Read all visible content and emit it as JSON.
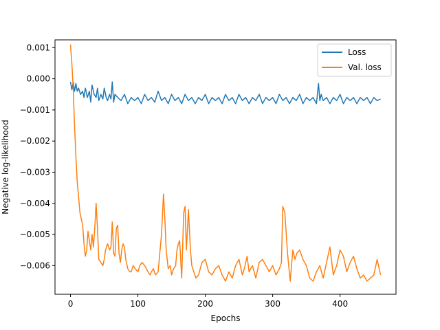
{
  "chart_data": {
    "type": "line",
    "title": "",
    "xlabel": "Epochs",
    "ylabel": "Negative log-likelihood",
    "xlim": [
      -23,
      483
    ],
    "ylim": [
      -0.00692,
      0.00125
    ],
    "x_ticks": [
      0,
      100,
      200,
      300,
      400
    ],
    "y_ticks": [
      0.001,
      0.0,
      -0.001,
      -0.002,
      -0.003,
      -0.004,
      -0.005,
      -0.006
    ],
    "y_tick_labels": [
      "0.001",
      "0.000",
      "−0.001",
      "−0.002",
      "−0.003",
      "−0.004",
      "−0.005",
      "−0.006"
    ],
    "x_tick_labels": [
      "0",
      "100",
      "200",
      "300",
      "400"
    ],
    "grid": false,
    "legend_position": "top-right",
    "series": [
      {
        "name": "Loss",
        "color": "#1f77b4",
        "x": [
          0,
          2,
          4,
          6,
          8,
          10,
          12,
          15,
          18,
          20,
          22,
          25,
          28,
          30,
          32,
          35,
          38,
          40,
          42,
          45,
          48,
          50,
          53,
          55,
          58,
          60,
          62,
          64,
          66,
          70,
          75,
          80,
          85,
          90,
          95,
          100,
          105,
          110,
          115,
          120,
          125,
          130,
          135,
          140,
          145,
          150,
          155,
          160,
          165,
          170,
          175,
          180,
          185,
          190,
          195,
          200,
          205,
          210,
          215,
          220,
          225,
          230,
          235,
          240,
          245,
          250,
          255,
          260,
          265,
          270,
          275,
          280,
          285,
          290,
          295,
          300,
          305,
          310,
          315,
          320,
          325,
          330,
          335,
          340,
          345,
          350,
          355,
          360,
          365,
          368,
          370,
          372,
          375,
          380,
          385,
          390,
          395,
          400,
          405,
          410,
          415,
          420,
          425,
          430,
          435,
          440,
          445,
          450,
          455,
          460
        ],
        "y": [
          -0.0001,
          -0.00035,
          -0.0001,
          -0.0004,
          -0.00015,
          -0.0004,
          -0.0003,
          -0.0005,
          -0.0004,
          -0.0006,
          -0.0003,
          -0.0006,
          -0.0004,
          -0.00075,
          -0.0002,
          -0.0005,
          -0.0006,
          -0.0003,
          -0.0007,
          -0.0005,
          -0.00065,
          -0.0003,
          -0.0006,
          -0.0007,
          -0.0005,
          -0.00065,
          -0.0001,
          -0.00075,
          -0.0005,
          -0.0006,
          -0.0007,
          -0.0005,
          -0.0008,
          -0.0006,
          -0.0007,
          -0.0006,
          -0.0008,
          -0.0005,
          -0.0007,
          -0.0006,
          -0.00075,
          -0.0004,
          -0.0007,
          -0.0006,
          -0.0008,
          -0.0005,
          -0.0007,
          -0.0006,
          -0.0008,
          -0.0005,
          -0.0007,
          -0.0006,
          -0.0008,
          -0.0006,
          -0.0007,
          -0.0005,
          -0.0008,
          -0.0006,
          -0.0007,
          -0.0006,
          -0.0008,
          -0.0005,
          -0.0007,
          -0.0006,
          -0.0008,
          -0.0005,
          -0.0007,
          -0.0006,
          -0.0008,
          -0.0006,
          -0.0007,
          -0.0005,
          -0.0008,
          -0.0006,
          -0.0007,
          -0.0006,
          -0.0008,
          -0.0005,
          -0.0007,
          -0.0006,
          -0.0008,
          -0.0006,
          -0.0007,
          -0.0005,
          -0.0008,
          -0.0006,
          -0.0007,
          -0.0006,
          -0.0008,
          -0.00015,
          -0.0007,
          -0.0005,
          -0.0007,
          -0.0006,
          -0.0008,
          -0.0006,
          -0.0007,
          -0.0005,
          -0.0008,
          -0.0006,
          -0.0007,
          -0.0006,
          -0.0008,
          -0.0006,
          -0.0007,
          -0.0006,
          -0.0008,
          -0.0006,
          -0.0007,
          -0.00065
        ]
      },
      {
        "name": "Val. loss",
        "color": "#ff7f0e",
        "x": [
          0,
          2,
          4,
          6,
          8,
          10,
          12,
          14,
          16,
          18,
          20,
          22,
          24,
          26,
          28,
          30,
          32,
          34,
          36,
          38,
          40,
          42,
          45,
          48,
          50,
          52,
          55,
          58,
          60,
          62,
          64,
          66,
          68,
          70,
          72,
          74,
          76,
          78,
          80,
          82,
          85,
          88,
          90,
          93,
          96,
          100,
          103,
          106,
          110,
          115,
          118,
          120,
          123,
          126,
          130,
          135,
          138,
          140,
          142,
          145,
          148,
          150,
          153,
          156,
          158,
          160,
          162,
          165,
          168,
          170,
          172,
          175,
          178,
          180,
          183,
          186,
          190,
          195,
          200,
          205,
          210,
          215,
          220,
          225,
          230,
          235,
          240,
          245,
          250,
          255,
          258,
          262,
          265,
          270,
          275,
          280,
          285,
          290,
          295,
          300,
          305,
          310,
          313,
          315,
          318,
          322,
          326,
          330,
          333,
          336,
          340,
          345,
          350,
          355,
          360,
          365,
          370,
          375,
          380,
          385,
          390,
          395,
          400,
          405,
          410,
          415,
          420,
          425,
          430,
          435,
          440,
          445,
          450,
          455,
          460
        ],
        "y": [
          0.0011,
          0.0005,
          -0.0003,
          -0.0015,
          -0.0025,
          -0.0033,
          -0.0038,
          -0.0043,
          -0.0045,
          -0.0047,
          -0.0053,
          -0.0057,
          -0.0055,
          -0.0049,
          -0.0052,
          -0.0055,
          -0.005,
          -0.0054,
          -0.0048,
          -0.004,
          -0.0048,
          -0.0058,
          -0.0059,
          -0.006,
          -0.0058,
          -0.0055,
          -0.0053,
          -0.0055,
          -0.0054,
          -0.0046,
          -0.0056,
          -0.0057,
          -0.0048,
          -0.0047,
          -0.0056,
          -0.0059,
          -0.0055,
          -0.0053,
          -0.0054,
          -0.0058,
          -0.0061,
          -0.0062,
          -0.0062,
          -0.006,
          -0.0061,
          -0.0062,
          -0.006,
          -0.0059,
          -0.006,
          -0.0062,
          -0.0063,
          -0.0062,
          -0.0061,
          -0.0063,
          -0.0062,
          -0.005,
          -0.0037,
          -0.0045,
          -0.0055,
          -0.0061,
          -0.006,
          -0.0063,
          -0.0061,
          -0.006,
          -0.0055,
          -0.0053,
          -0.0052,
          -0.0064,
          -0.0043,
          -0.0041,
          -0.0055,
          -0.0042,
          -0.0055,
          -0.006,
          -0.0062,
          -0.0064,
          -0.0063,
          -0.0059,
          -0.0058,
          -0.0062,
          -0.0063,
          -0.0061,
          -0.006,
          -0.0063,
          -0.0065,
          -0.0062,
          -0.0064,
          -0.006,
          -0.0058,
          -0.0063,
          -0.0061,
          -0.0057,
          -0.0062,
          -0.006,
          -0.0064,
          -0.0059,
          -0.0058,
          -0.006,
          -0.0062,
          -0.006,
          -0.0063,
          -0.0061,
          -0.0059,
          -0.0041,
          -0.0043,
          -0.0056,
          -0.0065,
          -0.0055,
          -0.0058,
          -0.0056,
          -0.0055,
          -0.0058,
          -0.006,
          -0.0064,
          -0.0065,
          -0.0062,
          -0.006,
          -0.0064,
          -0.0059,
          -0.0054,
          -0.0063,
          -0.006,
          -0.0055,
          -0.0057,
          -0.0062,
          -0.0059,
          -0.0057,
          -0.0061,
          -0.0064,
          -0.0063,
          -0.0065,
          -0.0064,
          -0.0063,
          -0.0058,
          -0.0063
        ]
      }
    ]
  }
}
